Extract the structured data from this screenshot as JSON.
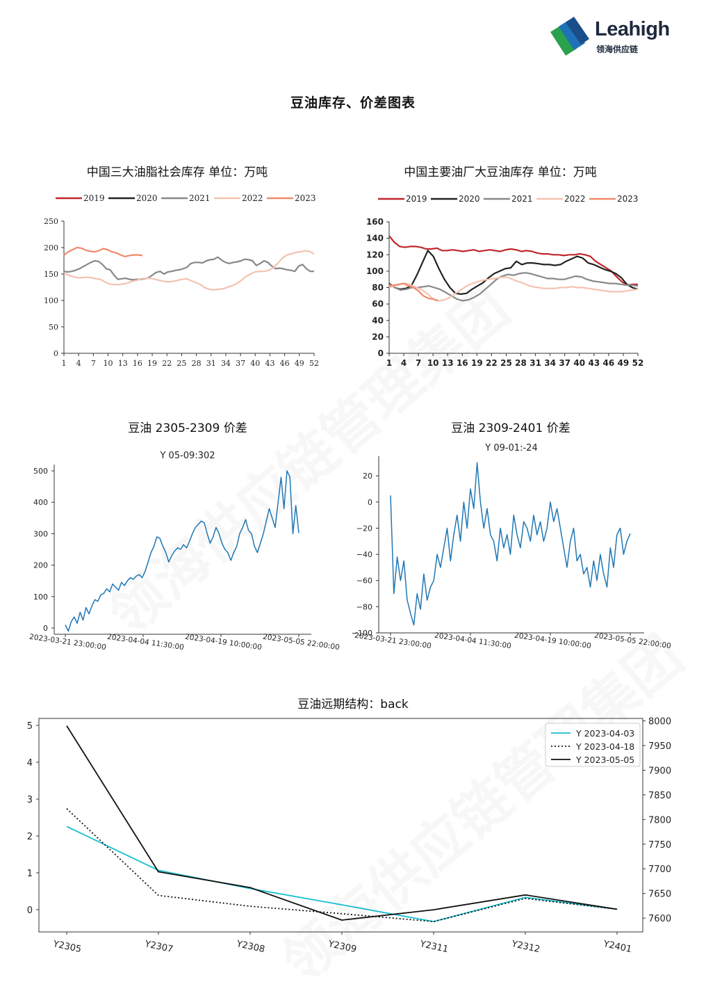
{
  "brand": {
    "name": "Leahigh",
    "sub": "领海供应链"
  },
  "page_title": "豆油库存、价差图表",
  "watermark": "领海供应链管理集团",
  "colors": {
    "red": "#c0262a",
    "black": "#222222",
    "gray": "#888888",
    "light": "#f4c2b0",
    "salmon": "#ef8a6b",
    "blue": "#1f77b4",
    "cyan": "#17becf"
  },
  "chart_data": [
    {
      "type": "line",
      "title": "中国三大油脂社会库存  单位：万吨",
      "legend": [
        "2019",
        "2020",
        "2021",
        "2022",
        "2023"
      ],
      "x_ticks": [
        1,
        4,
        7,
        10,
        13,
        16,
        19,
        22,
        25,
        28,
        31,
        34,
        37,
        40,
        43,
        46,
        49,
        52
      ],
      "y_ticks": [
        0,
        50,
        100,
        150,
        200,
        250
      ],
      "ylim": [
        0,
        250
      ],
      "series": [
        {
          "name": "2021",
          "values": [
            155,
            154,
            155,
            157,
            160,
            164,
            168,
            172,
            175,
            174,
            168,
            160,
            158,
            148,
            140,
            141,
            142,
            140,
            139,
            140,
            140,
            141,
            143,
            148,
            153,
            155,
            150,
            154,
            155,
            157,
            158,
            160,
            163,
            170,
            172,
            172,
            171,
            175,
            177,
            178,
            182,
            176,
            172,
            170,
            172,
            173,
            175,
            178,
            177,
            175,
            166,
            170,
            175,
            172,
            165,
            160,
            161,
            160,
            158,
            157,
            155,
            165,
            168,
            160,
            155,
            155
          ]
        },
        {
          "name": "2022",
          "values": [
            152,
            148,
            145,
            143,
            143,
            144,
            143,
            141,
            140,
            135,
            131,
            130,
            130,
            131,
            133,
            136,
            138,
            141,
            142,
            142,
            140,
            138,
            136,
            135,
            136,
            138,
            140,
            141,
            137,
            134,
            130,
            124,
            121,
            120,
            121,
            122,
            125,
            128,
            132,
            138,
            145,
            150,
            154,
            155,
            155,
            157,
            162,
            170,
            180,
            186,
            188,
            191,
            192,
            194,
            193,
            188
          ]
        },
        {
          "name": "2023",
          "values": [
            186,
            192,
            196,
            200,
            199,
            195,
            193,
            192,
            194,
            198,
            196,
            192,
            190,
            186,
            183,
            185,
            186,
            186,
            185
          ]
        }
      ]
    },
    {
      "type": "line",
      "title": "中国主要油厂大豆油库存  单位：万吨",
      "legend": [
        "2019",
        "2020",
        "2021",
        "2022",
        "2023"
      ],
      "x_ticks": [
        1,
        4,
        7,
        10,
        13,
        16,
        19,
        22,
        25,
        28,
        31,
        34,
        37,
        40,
        43,
        46,
        49,
        52
      ],
      "y_ticks": [
        0,
        20,
        40,
        60,
        80,
        100,
        120,
        140,
        160
      ],
      "ylim": [
        0,
        160
      ],
      "series": [
        {
          "name": "2019",
          "values": [
            143,
            135,
            130,
            129,
            130,
            130,
            129,
            127,
            127,
            128,
            125,
            125,
            126,
            125,
            124,
            125,
            126,
            124,
            125,
            126,
            125,
            124,
            126,
            127,
            126,
            124,
            125,
            124,
            122,
            121,
            121,
            120,
            120,
            119,
            120,
            120,
            121,
            120,
            118,
            112,
            108,
            104,
            100,
            93,
            87,
            83,
            84,
            84
          ]
        },
        {
          "name": "2020",
          "values": [
            85,
            80,
            78,
            79,
            82,
            95,
            110,
            125,
            118,
            103,
            90,
            80,
            73,
            72,
            73,
            78,
            82,
            86,
            92,
            97,
            100,
            103,
            104,
            112,
            108,
            110,
            110,
            109,
            108,
            108,
            107,
            108,
            112,
            115,
            118,
            116,
            110,
            108,
            105,
            102,
            100,
            97,
            92,
            84,
            80,
            78
          ]
        },
        {
          "name": "2021",
          "values": [
            84,
            80,
            77,
            78,
            80,
            80,
            81,
            82,
            80,
            78,
            74,
            70,
            66,
            64,
            65,
            68,
            72,
            78,
            84,
            90,
            94,
            96,
            95,
            97,
            98,
            97,
            95,
            93,
            91,
            91,
            90,
            90,
            92,
            94,
            93,
            90,
            88,
            87,
            86,
            85,
            85,
            84,
            83,
            83,
            82
          ]
        },
        {
          "name": "2022",
          "values": [
            80,
            82,
            84,
            85,
            83,
            80,
            77,
            72,
            66,
            64,
            65,
            68,
            73,
            77,
            82,
            85,
            87,
            89,
            90,
            91,
            92,
            93,
            91,
            88,
            86,
            83,
            81,
            80,
            79,
            79,
            79,
            80,
            80,
            81,
            80,
            80,
            79,
            78,
            77,
            76,
            75,
            75,
            75,
            76,
            77,
            78
          ]
        },
        {
          "name": "2023",
          "values": [
            82,
            83,
            84,
            85,
            82,
            80,
            76,
            70,
            67,
            66,
            64
          ]
        }
      ]
    },
    {
      "type": "line",
      "title": "豆油 2305-2309 价差",
      "annotation": "Y 05-09:302",
      "x_ticks": [
        "2023-03-21 23:00:00",
        "2023-04-04 11:30:00",
        "2023-04-19 10:00:00",
        "2023-05-05 22:00:00"
      ],
      "y_ticks": [
        0,
        100,
        200,
        300,
        400,
        500
      ],
      "ylim": [
        -20,
        520
      ],
      "series": [
        {
          "name": "",
          "values": [
            10,
            -10,
            20,
            35,
            15,
            50,
            25,
            65,
            45,
            70,
            90,
            85,
            105,
            110,
            125,
            115,
            140,
            130,
            120,
            145,
            135,
            150,
            160,
            155,
            165,
            170,
            160,
            180,
            210,
            240,
            260,
            290,
            285,
            260,
            240,
            210,
            230,
            245,
            255,
            250,
            265,
            255,
            275,
            300,
            320,
            330,
            340,
            335,
            300,
            270,
            290,
            320,
            300,
            270,
            250,
            240,
            215,
            240,
            260,
            300,
            320,
            345,
            310,
            300,
            260,
            240,
            270,
            300,
            340,
            380,
            350,
            320,
            400,
            480,
            380,
            500,
            480,
            300,
            390,
            302
          ]
        }
      ]
    },
    {
      "type": "line",
      "title": "豆油 2309-2401 价差",
      "annotation": "Y 09-01:-24",
      "x_ticks": [
        "2023-03-21 23:00:00",
        "2023-04-04 11:30:00",
        "2023-04-19 10:00:00",
        "2023-05-05 22:00:00"
      ],
      "y_ticks": [
        20,
        0,
        -20,
        -40,
        -60,
        -80,
        -100
      ],
      "ylim": [
        -100,
        35
      ],
      "series": [
        {
          "name": "",
          "values": [
            5,
            -70,
            -42,
            -60,
            -45,
            -75,
            -85,
            -94,
            -70,
            -82,
            -55,
            -75,
            -65,
            -60,
            -40,
            -50,
            -35,
            -20,
            -45,
            -25,
            -10,
            -30,
            0,
            -20,
            10,
            -5,
            30,
            0,
            -20,
            -5,
            -25,
            -30,
            -45,
            -20,
            -35,
            -25,
            -40,
            -10,
            -25,
            -35,
            -15,
            -20,
            -30,
            -10,
            -25,
            -15,
            -30,
            -20,
            0,
            -15,
            -5,
            -20,
            -35,
            -50,
            -30,
            -20,
            -45,
            -40,
            -55,
            -50,
            -65,
            -45,
            -60,
            -40,
            -55,
            -65,
            -35,
            -50,
            -25,
            -20,
            -40,
            -30,
            -24
          ]
        }
      ]
    },
    {
      "type": "line",
      "title": "豆油远期结构：back",
      "categories": [
        "Y2305",
        "Y2307",
        "Y2308",
        "Y2309",
        "Y2311",
        "Y2312",
        "Y2401"
      ],
      "y_left_ticks": [
        0,
        1,
        2,
        3,
        4,
        5
      ],
      "y_right_ticks": [
        7600,
        7650,
        7700,
        7750,
        7800,
        7850,
        7900,
        7950,
        8000
      ],
      "ylim_right": [
        7572,
        8005
      ],
      "series": [
        {
          "name": "Y 2023-04-03",
          "values": [
            7786,
            7697,
            7660,
            7627,
            7593,
            7642,
            7618
          ]
        },
        {
          "name": "Y 2023-04-18",
          "values": [
            7822,
            7646,
            7624,
            7609,
            7593,
            7640,
            7618
          ]
        },
        {
          "name": "Y 2023-05-05",
          "values": [
            7990,
            7694,
            7662,
            7596,
            7617,
            7647,
            7618
          ]
        }
      ]
    }
  ]
}
